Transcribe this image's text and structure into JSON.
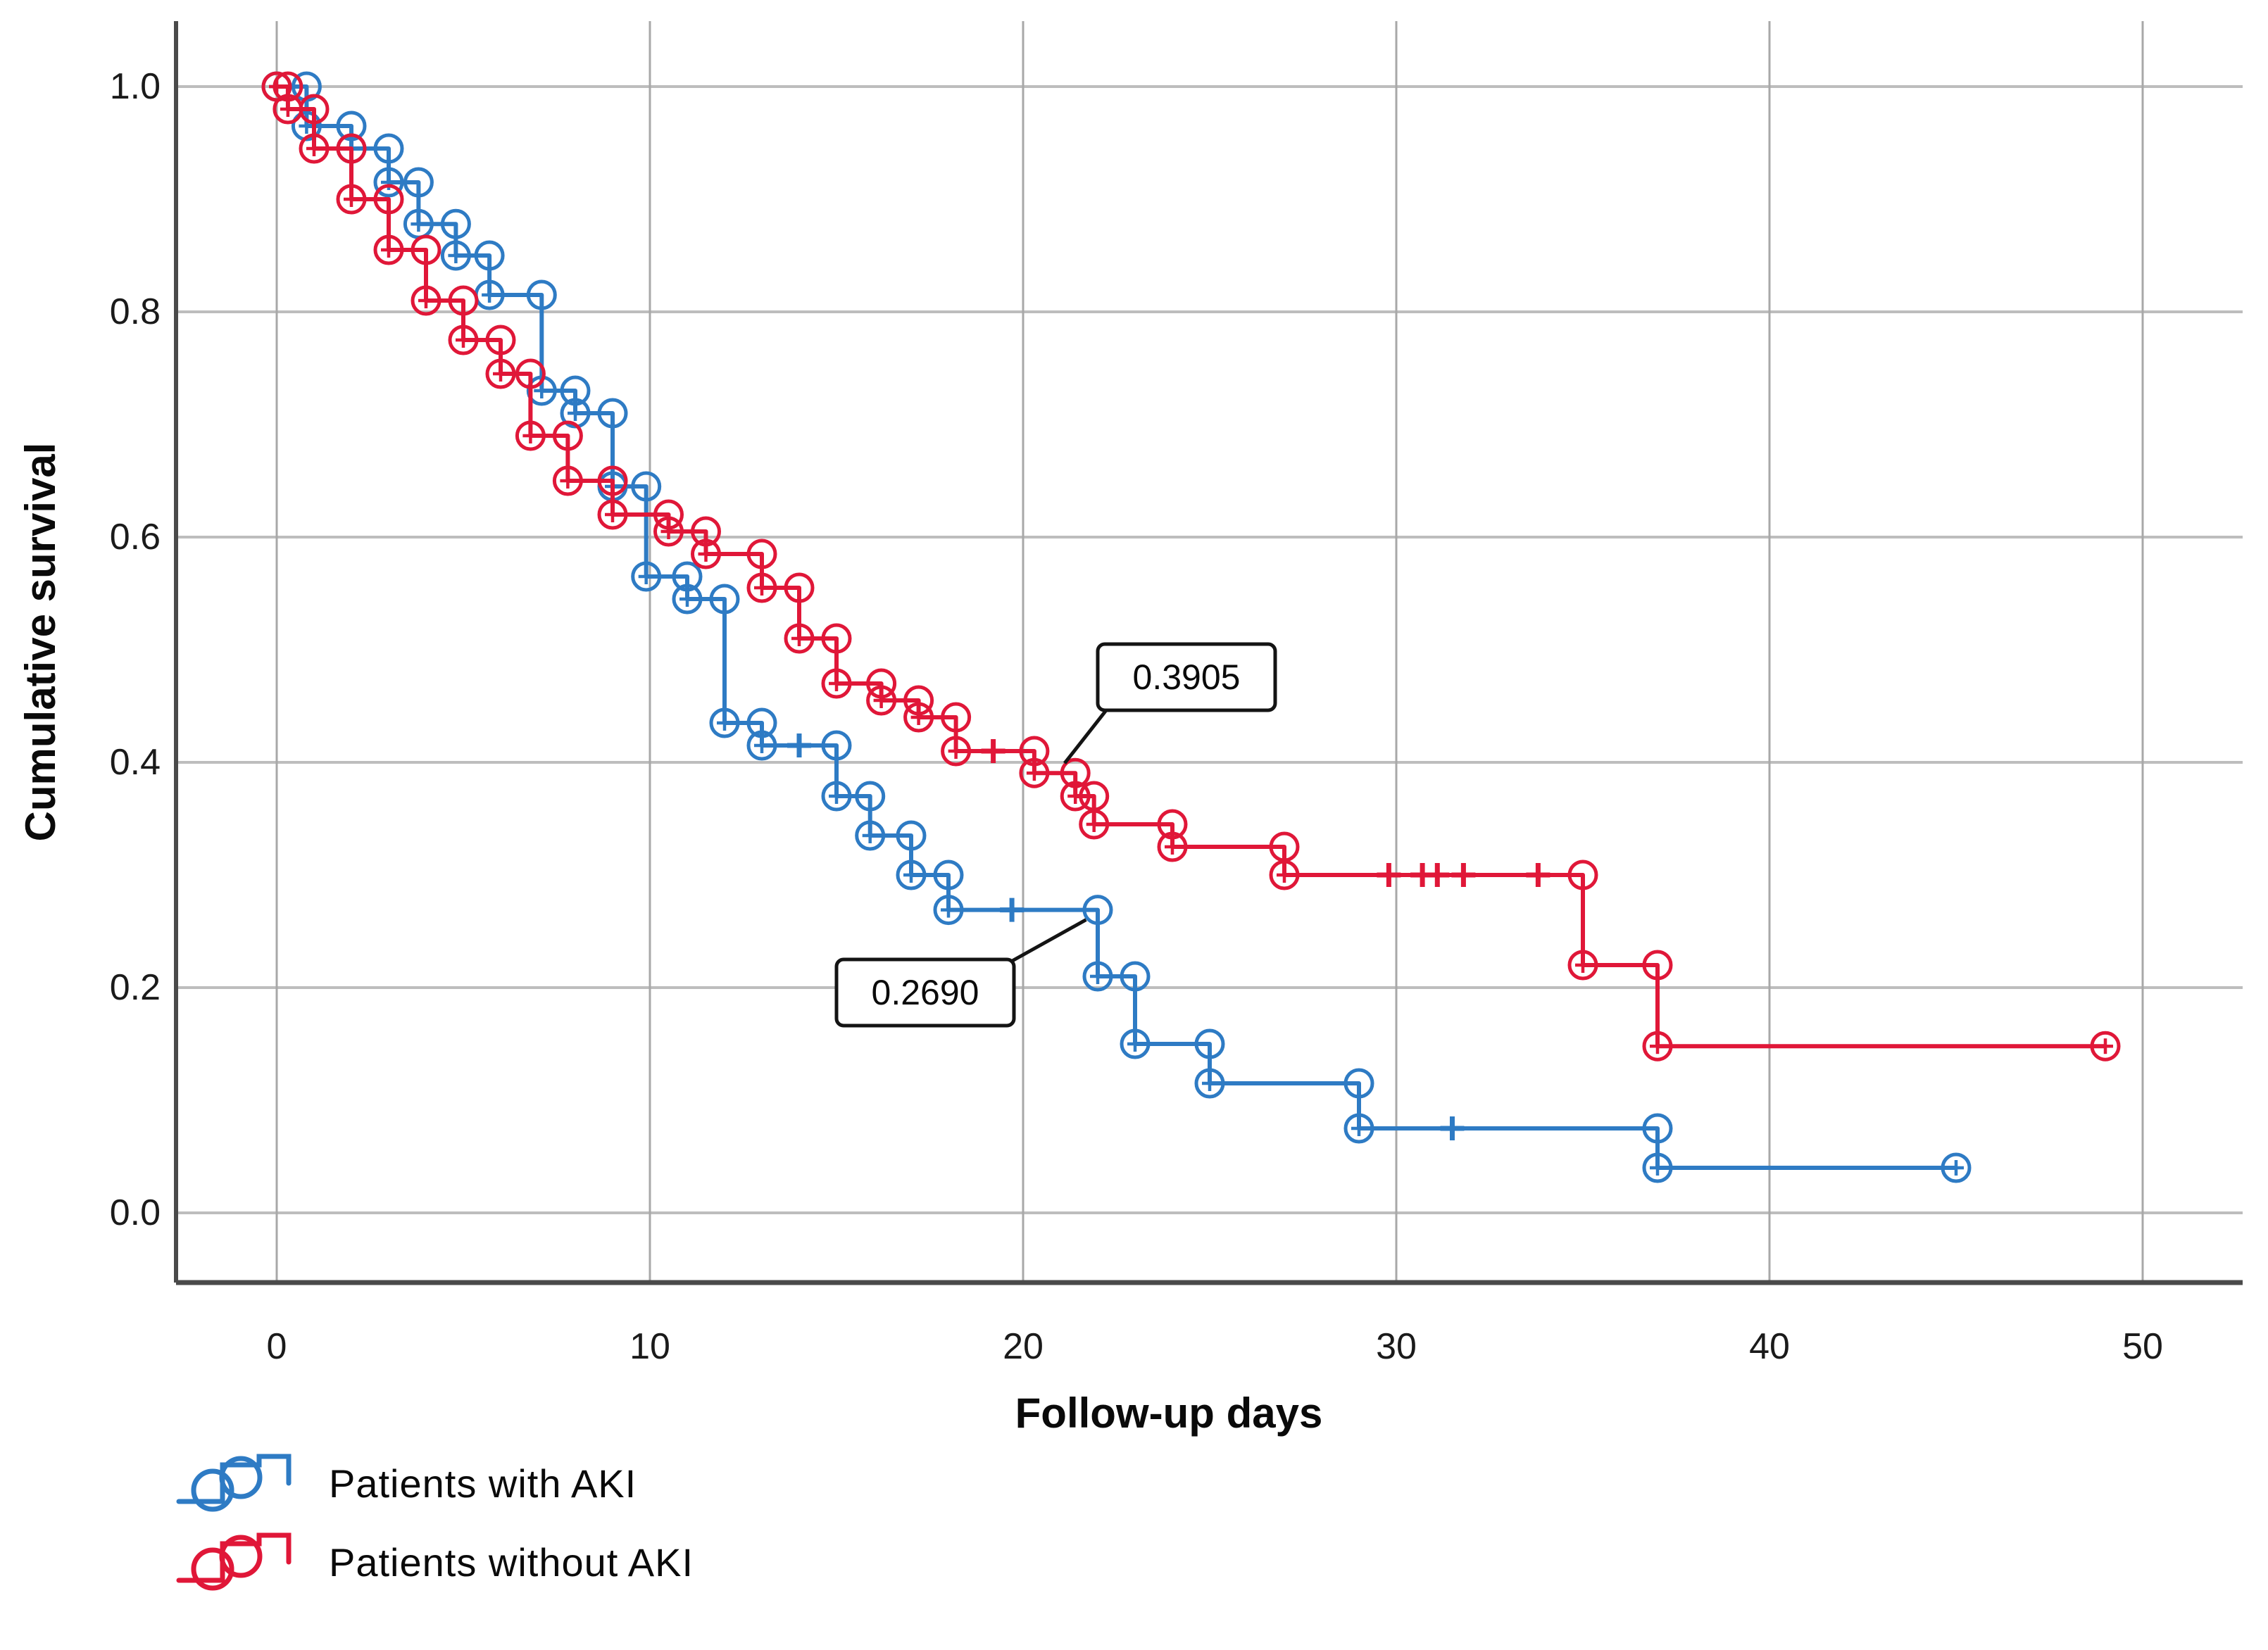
{
  "figure": {
    "background": "#ffffff"
  },
  "chart_data": {
    "type": "line",
    "subtype": "kaplan_meier_step_survival",
    "title": "",
    "xlabel": "Follow-up days",
    "ylabel": "Cumulative survival",
    "xticks": [
      0,
      10,
      20,
      30,
      40,
      50
    ],
    "xtick_labels": [
      "0",
      "10",
      "20",
      "30",
      "40",
      "50"
    ],
    "yticks": [
      1.0,
      0.8,
      0.6,
      0.4,
      0.2,
      0.0
    ],
    "ytick_labels": [
      "1.0",
      "0.8",
      "0.6",
      "0.4",
      "0.2",
      "0.0"
    ],
    "xlim": [
      -2.7,
      52.7
    ],
    "ylim": [
      -0.06,
      1.06
    ],
    "grid": true,
    "grid_color": "#bdbdbd",
    "axis_color": "#4a4a4a",
    "tick_label_color": "#1a1a1a",
    "legend_position": "bottom-left",
    "series": [
      {
        "name": "Patients with AKI",
        "color": "#2E7BC4",
        "steps": [
          [
            0,
            1.0
          ],
          [
            0.8,
            0.965
          ],
          [
            2,
            0.945
          ],
          [
            3,
            0.915
          ],
          [
            3.8,
            0.878
          ],
          [
            4.8,
            0.85
          ],
          [
            5.7,
            0.815
          ],
          [
            7.1,
            0.73
          ],
          [
            8,
            0.71
          ],
          [
            9,
            0.645
          ],
          [
            9.9,
            0.565
          ],
          [
            11,
            0.545
          ],
          [
            12,
            0.435
          ],
          [
            13,
            0.415
          ],
          [
            15,
            0.37
          ],
          [
            15.9,
            0.335
          ],
          [
            17,
            0.3
          ],
          [
            18,
            0.269
          ],
          [
            22,
            0.21
          ],
          [
            23,
            0.15
          ],
          [
            25,
            0.115
          ],
          [
            29,
            0.075
          ],
          [
            37,
            0.04
          ]
        ],
        "end_time": 45,
        "end_censored": true,
        "censor_times": [
          14,
          19.7,
          31.5
        ]
      },
      {
        "name": "Patients without AKI",
        "color": "#E01738",
        "steps": [
          [
            0,
            1.0
          ],
          [
            0.3,
            0.98
          ],
          [
            1,
            0.945
          ],
          [
            2,
            0.9
          ],
          [
            3,
            0.855
          ],
          [
            4,
            0.81
          ],
          [
            5,
            0.775
          ],
          [
            6,
            0.745
          ],
          [
            6.8,
            0.69
          ],
          [
            7.8,
            0.65
          ],
          [
            9,
            0.62
          ],
          [
            10.5,
            0.605
          ],
          [
            11.5,
            0.585
          ],
          [
            13,
            0.555
          ],
          [
            14,
            0.51
          ],
          [
            15,
            0.47
          ],
          [
            16.2,
            0.455
          ],
          [
            17.2,
            0.44
          ],
          [
            18.2,
            0.41
          ],
          [
            20.3,
            0.3905
          ],
          [
            21.4,
            0.37
          ],
          [
            21.9,
            0.345
          ],
          [
            24,
            0.325
          ],
          [
            27,
            0.3
          ],
          [
            35,
            0.22
          ],
          [
            37,
            0.148
          ]
        ],
        "end_time": 49,
        "end_censored": true,
        "censor_times": [
          19.2,
          29.8,
          30.7,
          31.1,
          31.8,
          33.8
        ]
      }
    ],
    "annotations": [
      {
        "text": "0.3905",
        "series": "Patients without AKI",
        "target_day": 21,
        "target_value": 0.3905,
        "box_left_day": 22.0,
        "box_top_value": 0.505,
        "leader_corner": "bottom-left"
      },
      {
        "text": "0.2690",
        "series": "Patients with AKI",
        "target_day": 21.8,
        "target_value": 0.269,
        "box_left_day": 15.0,
        "box_top_value": 0.225,
        "leader_corner": "top-right"
      }
    ]
  },
  "legend": {
    "items": [
      {
        "label": "Patients with AKI",
        "color": "#2E7BC4"
      },
      {
        "label": "Patients without AKI",
        "color": "#E01738"
      }
    ]
  }
}
